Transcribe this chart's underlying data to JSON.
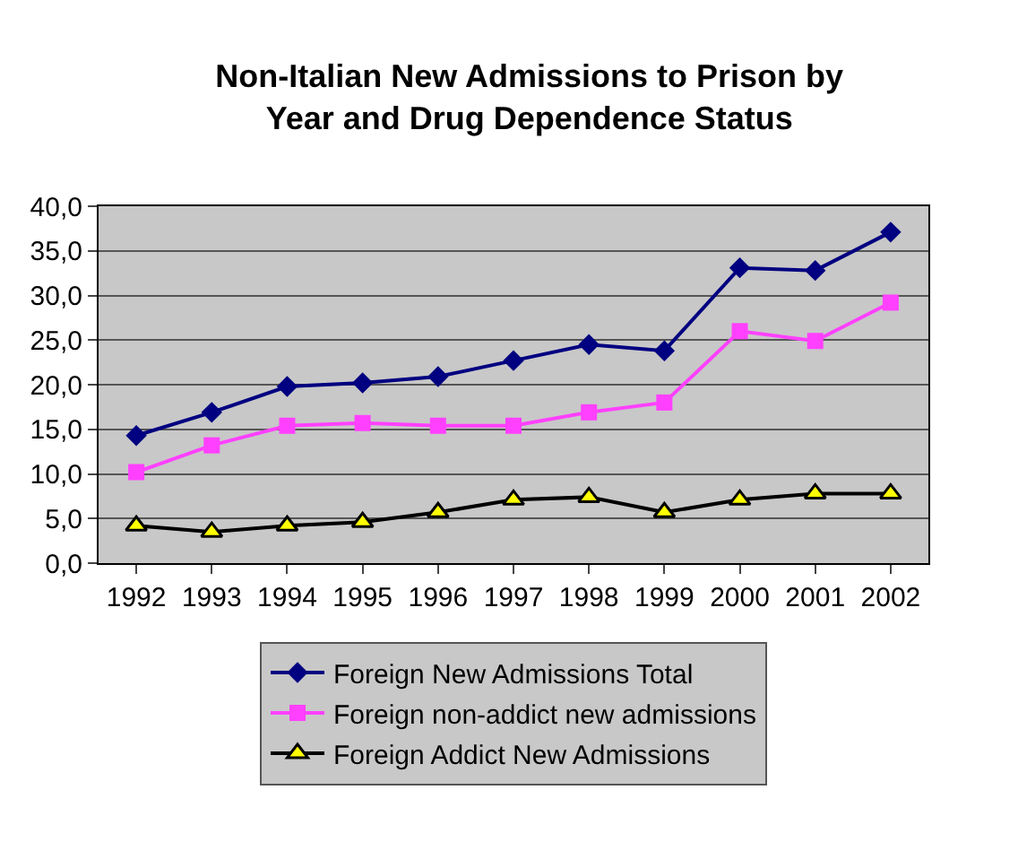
{
  "chart_data": {
    "type": "line",
    "title": "Non-Italian New Admissions to Prison by Year and Drug Dependence Status",
    "categories": [
      "1992",
      "1993",
      "1994",
      "1995",
      "1996",
      "1997",
      "1998",
      "1999",
      "2000",
      "2001",
      "2002"
    ],
    "series": [
      {
        "name": "Foreign New Admissions Total",
        "color": "#000080",
        "marker": "diamond",
        "values": [
          14.3,
          16.9,
          19.8,
          20.2,
          20.9,
          22.7,
          24.5,
          23.8,
          33.1,
          32.8,
          37.1
        ]
      },
      {
        "name": "Foreign non-addict new admissions",
        "color": "#ff40ff",
        "marker": "square",
        "values": [
          10.2,
          13.2,
          15.4,
          15.7,
          15.4,
          15.4,
          16.9,
          18.0,
          26.0,
          24.9,
          29.2
        ]
      },
      {
        "name": "Foreign Addict New Admissions",
        "color": "#000000",
        "marker": "triangle",
        "values": [
          4.2,
          3.5,
          4.2,
          4.6,
          5.7,
          7.1,
          7.4,
          5.7,
          7.1,
          7.8,
          7.8
        ]
      }
    ],
    "ylim": [
      0,
      40
    ],
    "yticks": [
      {
        "value": 0,
        "label": "0,0"
      },
      {
        "value": 5,
        "label": "5,0"
      },
      {
        "value": 10,
        "label": "10,0"
      },
      {
        "value": 15,
        "label": "15,0"
      },
      {
        "value": 20,
        "label": "20,0"
      },
      {
        "value": 25,
        "label": "25,0"
      },
      {
        "value": 30,
        "label": "30,0"
      },
      {
        "value": 35,
        "label": "35,0"
      },
      {
        "value": 40,
        "label": "40,0"
      }
    ],
    "grid": "y",
    "legend": "bottom",
    "line_style": "solid"
  }
}
